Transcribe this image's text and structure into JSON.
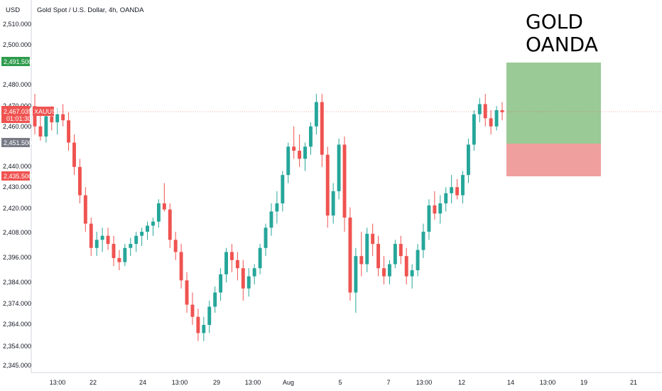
{
  "header": {
    "currency": "USD",
    "symbol_description": "Gold Spot / U.S. Dollar, 4h, OANDA"
  },
  "overlay": {
    "line1": "GOLD",
    "line2": "OANDA"
  },
  "badges": {
    "target": "2,491.500",
    "current_price": "2,467.035",
    "current_symbol": "XAUUSD",
    "countdown": "01:01:30",
    "entry": "2,451.500",
    "stop": "2,435.500"
  },
  "colors": {
    "up": "#26a69a",
    "down": "#ef5350",
    "target_zone": "#8fc48a",
    "stop_zone": "#ef9a9a",
    "target_badge": "#2e9c4d",
    "entry_badge": "#787b86"
  },
  "chart_data": {
    "type": "candlestick",
    "price_ticks": [
      "2,510.000",
      "2,500.000",
      "2,480.000",
      "2,470.000",
      "2,460.000",
      "2,440.000",
      "2,430.000",
      "2,420.000",
      "2,408.000",
      "2,396.000",
      "2,384.000",
      "2,374.000",
      "2,364.000",
      "2,354.000",
      "2,345.000"
    ],
    "time_ticks": [
      "13:00",
      "22",
      "24",
      "13:00",
      "29",
      "13:00",
      "Aug",
      "5",
      "7",
      "13:00",
      "12",
      "14",
      "13:00",
      "19",
      "21"
    ],
    "position": {
      "type": "long",
      "entry": 2451.5,
      "target": 2491.5,
      "stop": 2435.5
    },
    "last_price": 2467.035,
    "candles": [
      [
        2470,
        2476,
        2456,
        2460
      ],
      [
        2460,
        2466,
        2453,
        2455
      ],
      [
        2455,
        2468,
        2452,
        2465
      ],
      [
        2465,
        2470,
        2458,
        2462
      ],
      [
        2462,
        2469,
        2456,
        2466
      ],
      [
        2466,
        2471,
        2460,
        2463
      ],
      [
        2463,
        2467,
        2448,
        2452
      ],
      [
        2452,
        2456,
        2436,
        2440
      ],
      [
        2440,
        2444,
        2422,
        2426
      ],
      [
        2426,
        2430,
        2408,
        2412
      ],
      [
        2412,
        2415,
        2396,
        2400
      ],
      [
        2400,
        2408,
        2396,
        2404
      ],
      [
        2404,
        2410,
        2398,
        2406
      ],
      [
        2406,
        2410,
        2399,
        2402
      ],
      [
        2402,
        2406,
        2391,
        2395
      ],
      [
        2395,
        2399,
        2389,
        2393
      ],
      [
        2393,
        2402,
        2391,
        2400
      ],
      [
        2400,
        2405,
        2396,
        2402
      ],
      [
        2402,
        2408,
        2398,
        2406
      ],
      [
        2406,
        2410,
        2401,
        2408
      ],
      [
        2408,
        2413,
        2404,
        2411
      ],
      [
        2411,
        2415,
        2406,
        2413
      ],
      [
        2413,
        2424,
        2410,
        2422
      ],
      [
        2422,
        2432,
        2418,
        2419
      ],
      [
        2419,
        2422,
        2400,
        2404
      ],
      [
        2404,
        2408,
        2394,
        2398
      ],
      [
        2398,
        2402,
        2380,
        2384
      ],
      [
        2384,
        2388,
        2368,
        2372
      ],
      [
        2372,
        2378,
        2362,
        2366
      ],
      [
        2366,
        2370,
        2354,
        2358
      ],
      [
        2358,
        2366,
        2354,
        2362
      ],
      [
        2362,
        2374,
        2358,
        2371
      ],
      [
        2371,
        2381,
        2368,
        2378
      ],
      [
        2378,
        2390,
        2374,
        2387
      ],
      [
        2387,
        2400,
        2383,
        2398
      ],
      [
        2398,
        2402,
        2388,
        2394
      ],
      [
        2394,
        2398,
        2384,
        2390
      ],
      [
        2390,
        2394,
        2374,
        2380
      ],
      [
        2380,
        2390,
        2376,
        2386
      ],
      [
        2386,
        2392,
        2382,
        2390
      ],
      [
        2390,
        2402,
        2387,
        2400
      ],
      [
        2400,
        2412,
        2396,
        2410
      ],
      [
        2410,
        2422,
        2406,
        2418
      ],
      [
        2418,
        2428,
        2412,
        2422
      ],
      [
        2422,
        2438,
        2418,
        2436
      ],
      [
        2436,
        2452,
        2432,
        2450
      ],
      [
        2450,
        2460,
        2444,
        2448
      ],
      [
        2448,
        2456,
        2440,
        2444
      ],
      [
        2444,
        2452,
        2438,
        2450
      ],
      [
        2450,
        2462,
        2446,
        2460
      ],
      [
        2460,
        2476,
        2456,
        2472
      ],
      [
        2472,
        2476,
        2440,
        2446
      ],
      [
        2446,
        2450,
        2410,
        2416
      ],
      [
        2416,
        2432,
        2412,
        2428
      ],
      [
        2428,
        2454,
        2424,
        2451
      ],
      [
        2451,
        2455,
        2408,
        2415
      ],
      [
        2415,
        2420,
        2374,
        2378
      ],
      [
        2378,
        2400,
        2368,
        2396
      ],
      [
        2396,
        2408,
        2386,
        2392
      ],
      [
        2392,
        2410,
        2388,
        2407
      ],
      [
        2407,
        2412,
        2396,
        2402
      ],
      [
        2402,
        2406,
        2386,
        2390
      ],
      [
        2390,
        2396,
        2382,
        2386
      ],
      [
        2386,
        2394,
        2382,
        2392
      ],
      [
        2392,
        2404,
        2390,
        2402
      ],
      [
        2402,
        2406,
        2392,
        2396
      ],
      [
        2396,
        2400,
        2382,
        2386
      ],
      [
        2386,
        2392,
        2380,
        2389
      ],
      [
        2389,
        2402,
        2386,
        2399
      ],
      [
        2399,
        2412,
        2395,
        2408
      ],
      [
        2408,
        2424,
        2404,
        2421
      ],
      [
        2421,
        2428,
        2414,
        2417
      ],
      [
        2417,
        2426,
        2412,
        2422
      ],
      [
        2422,
        2430,
        2418,
        2427
      ],
      [
        2427,
        2436,
        2422,
        2430
      ],
      [
        2430,
        2434,
        2424,
        2426
      ],
      [
        2426,
        2438,
        2422,
        2436
      ],
      [
        2436,
        2454,
        2432,
        2451
      ],
      [
        2451,
        2468,
        2448,
        2466
      ],
      [
        2466,
        2474,
        2462,
        2471
      ],
      [
        2471,
        2476,
        2460,
        2464
      ],
      [
        2464,
        2468,
        2456,
        2460
      ],
      [
        2460,
        2470,
        2458,
        2468
      ],
      [
        2468,
        2472,
        2463,
        2467
      ]
    ]
  }
}
